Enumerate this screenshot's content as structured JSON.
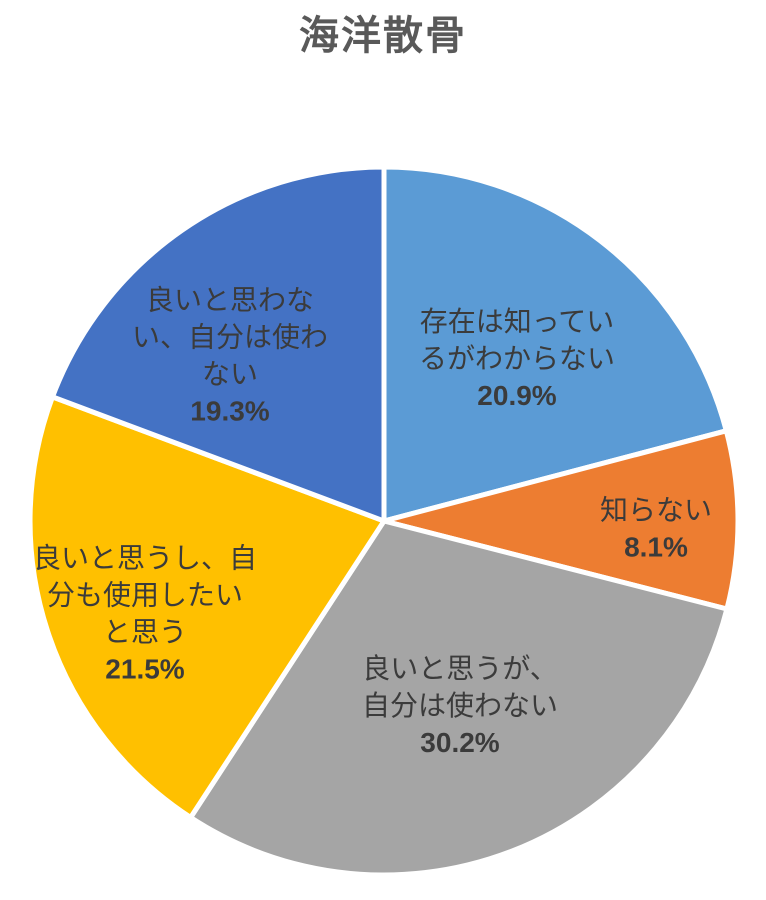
{
  "chart_data": {
    "type": "pie",
    "title": "海洋散骨",
    "legend": "none",
    "start_angle_deg": 0,
    "direction": "clockwise",
    "total": 100,
    "slices": [
      {
        "label": "存在は知っているがわからない",
        "label_lines": [
          "存在は知ってい",
          "るがわからない"
        ],
        "value": 20.9,
        "pct_label": "20.9%",
        "color": "#5B9BD5"
      },
      {
        "label": "知らない",
        "label_lines": [
          "知らない"
        ],
        "value": 8.1,
        "pct_label": "8.1%",
        "color": "#ED7D31"
      },
      {
        "label": "良いと思うが、自分は使わない",
        "label_lines": [
          "良いと思うが、",
          "自分は使わない"
        ],
        "value": 30.2,
        "pct_label": "30.2%",
        "color": "#A5A5A5"
      },
      {
        "label": "良いと思うし、自分も使用したいと思う",
        "label_lines": [
          "良いと思うし、自",
          "分も使用したい",
          "と思う"
        ],
        "value": 21.5,
        "pct_label": "21.5%",
        "color": "#FFC000"
      },
      {
        "label": "良いと思わない、自分は使わない",
        "label_lines": [
          "良いと思わな",
          "い、自分は使わ",
          "ない"
        ],
        "value": 19.3,
        "pct_label": "19.3%",
        "color": "#4472C4"
      }
    ],
    "colors": {
      "title_text": "#595959",
      "label_text": "#3B3B3B",
      "slice_border": "#FFFFFF",
      "background": "#FFFFFF"
    }
  }
}
